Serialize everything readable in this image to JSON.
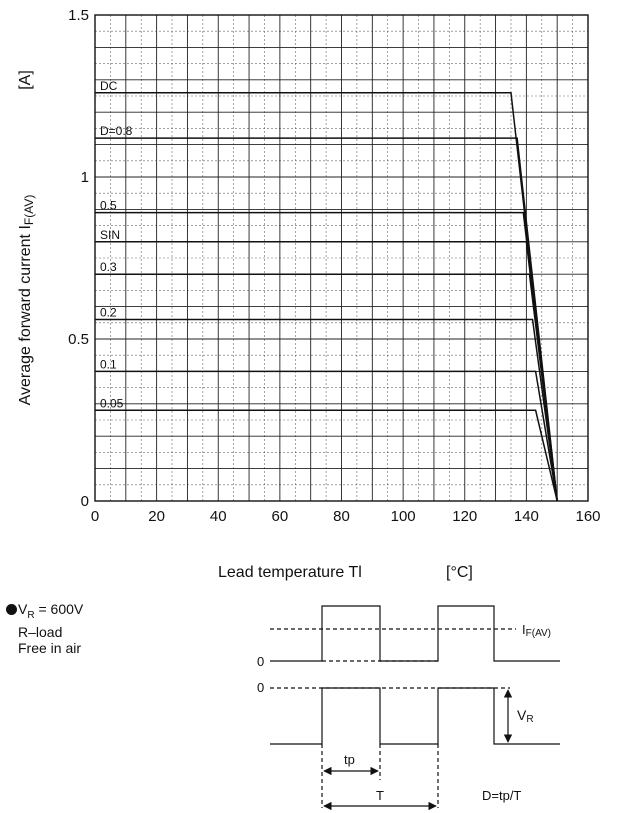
{
  "chart_data": {
    "type": "line",
    "xlabel": "Lead temperature  Tl",
    "xlabel_unit": "[°C]",
    "ylabel_main": "Average forward current  I",
    "ylabel_sub": "F(AV)",
    "ylabel_unit": "[A]",
    "xlim": [
      0,
      160
    ],
    "ylim": [
      0,
      1.5
    ],
    "x_ticks": [
      0,
      20,
      40,
      60,
      80,
      100,
      120,
      140,
      160
    ],
    "y_ticks": [
      0,
      0.5,
      1,
      1.5
    ],
    "y_tick_labels": [
      "0",
      "0.5",
      "1",
      "1.5"
    ],
    "grid": true,
    "series": [
      {
        "name": "DC",
        "x": [
          0,
          135,
          150
        ],
        "y": [
          1.26,
          1.26,
          0
        ]
      },
      {
        "name": "D=0.8",
        "x": [
          0,
          137,
          150
        ],
        "y": [
          1.12,
          1.12,
          0
        ]
      },
      {
        "name": "0.5",
        "x": [
          0,
          139,
          150
        ],
        "y": [
          0.89,
          0.89,
          0
        ]
      },
      {
        "name": "SIN",
        "x": [
          0,
          140,
          150
        ],
        "y": [
          0.8,
          0.8,
          0
        ]
      },
      {
        "name": "0.3",
        "x": [
          0,
          141,
          150
        ],
        "y": [
          0.7,
          0.7,
          0
        ]
      },
      {
        "name": "0.2",
        "x": [
          0,
          142,
          150
        ],
        "y": [
          0.56,
          0.56,
          0
        ]
      },
      {
        "name": "0.1",
        "x": [
          0,
          143,
          150
        ],
        "y": [
          0.4,
          0.4,
          0
        ]
      },
      {
        "name": "0.05",
        "x": [
          0,
          143,
          150
        ],
        "y": [
          0.28,
          0.28,
          0
        ]
      }
    ]
  },
  "conditions": {
    "vr_main": "V",
    "vr_sub": "R",
    "vr_value": " = 600V",
    "line2": "R–load",
    "line3": "Free in air"
  },
  "waveform": {
    "current_label_main": "I",
    "current_label_sub": "F(AV)",
    "zero_top": "0",
    "zero_bottom": "0",
    "vr_main": "V",
    "vr_sub": "R",
    "tp_label": "tp",
    "t_label": "T",
    "duty_formula": "D=tp/T"
  }
}
